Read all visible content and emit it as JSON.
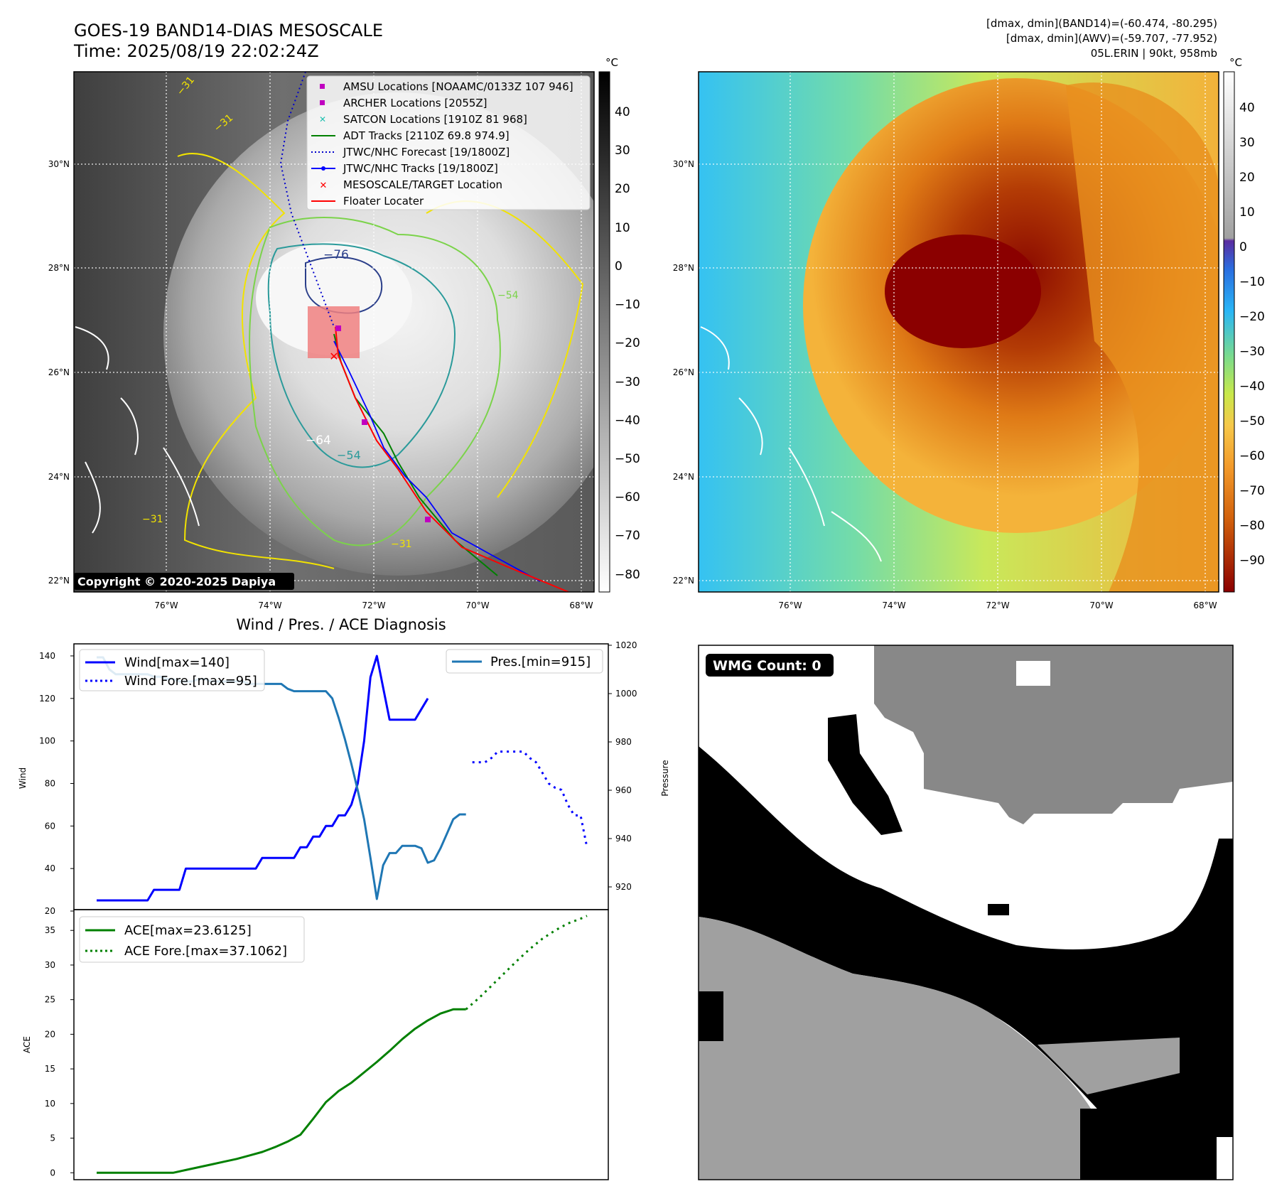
{
  "header": {
    "title_line1": "GOES-19 BAND14-DIAS MESOSCALE",
    "title_line2": "Time: 2025/08/19 22:02:24Z",
    "stats_line1": "[dmax, dmin](BAND14)=(-60.474, -80.295)",
    "stats_line2": "[dmax, dmin](AWV)=(-59.707, -77.952)",
    "stats_line3": "05L.ERIN | 90kt, 958mb"
  },
  "copyright": "Copyright © 2020-2025 Dapiya",
  "map_left": {
    "lat_ticks": [
      "30°N",
      "28°N",
      "26°N",
      "24°N",
      "22°N"
    ],
    "lon_ticks": [
      "76°W",
      "74°W",
      "72°W",
      "70°W",
      "68°W"
    ],
    "colorbar_unit": "°C",
    "colorbar_ticks": [
      "40",
      "30",
      "20",
      "10",
      "0",
      "−10",
      "−20",
      "−30",
      "−40",
      "−50",
      "−60",
      "−70",
      "−80"
    ],
    "contour_labels": [
      "−31",
      "−31",
      "−76",
      "−54",
      "−64",
      "−54",
      "−31",
      "−31"
    ],
    "legend": [
      {
        "label": "AMSU Locations [NOAAMC/0133Z 107 946]",
        "marker": "square",
        "color": "#c000c0"
      },
      {
        "label": "ARCHER Locations [2055Z]",
        "marker": "square",
        "color": "#c000c0"
      },
      {
        "label": "SATCON Locations [1910Z 81 968]",
        "marker": "x",
        "color": "#20c0b0"
      },
      {
        "label": "ADT Tracks [2110Z 69.8 974.9]",
        "marker": "line",
        "color": "#008000"
      },
      {
        "label": "JTWC/NHC Forecast [19/1800Z]",
        "marker": "dotted",
        "color": "#0000cc"
      },
      {
        "label": "JTWC/NHC Tracks [19/1800Z]",
        "marker": "line-dot",
        "color": "#0000ff"
      },
      {
        "label": "MESOSCALE/TARGET Location",
        "marker": "x",
        "color": "#ff0000"
      },
      {
        "label": "Floater Locater",
        "marker": "line",
        "color": "#ff0000"
      }
    ]
  },
  "map_right": {
    "lat_ticks": [
      "30°N",
      "28°N",
      "26°N",
      "24°N",
      "22°N"
    ],
    "lon_ticks": [
      "76°W",
      "74°W",
      "72°W",
      "70°W",
      "68°W"
    ],
    "colorbar_unit": "°C",
    "colorbar_ticks": [
      "40",
      "30",
      "20",
      "10",
      "0",
      "−10",
      "−20",
      "−30",
      "−40",
      "−50",
      "−60",
      "−70",
      "−80",
      "−90"
    ]
  },
  "wmg": {
    "label": "WMG Count: 0"
  },
  "diagnosis_title": "Wind / Pres. / ACE Diagnosis",
  "chart_data": [
    {
      "type": "line",
      "title": "Wind / Pres. / ACE Diagnosis",
      "ylabel": "Wind",
      "y2label": "Pressure",
      "ylim": [
        20,
        145
      ],
      "y2lim": [
        910,
        1020
      ],
      "yticks": [
        20,
        40,
        60,
        80,
        100,
        120,
        140
      ],
      "y2ticks": [
        920,
        940,
        960,
        980,
        1000,
        1020
      ],
      "x": [
        0,
        1,
        2,
        3,
        4,
        5,
        6,
        7,
        8,
        9,
        10,
        11,
        12,
        13,
        14,
        15,
        16,
        17,
        18,
        19,
        20,
        21,
        22,
        23,
        24,
        25,
        26,
        27,
        28,
        29,
        30,
        31,
        32,
        33,
        34,
        35,
        36,
        37,
        38,
        39,
        40,
        41,
        42,
        43,
        44,
        45,
        46,
        47,
        48,
        49,
        50,
        51,
        52,
        53,
        54,
        55,
        56,
        57,
        58,
        59,
        60,
        61,
        62,
        63,
        64,
        65,
        66,
        67,
        68,
        69,
        70,
        71,
        72,
        73,
        74,
        75,
        76,
        77
      ],
      "series": [
        {
          "name": "Wind[max=140]",
          "axis": "left",
          "style": "solid",
          "color": "#0000ff",
          "width": 3,
          "x": [
            0,
            1,
            2,
            3,
            4,
            5,
            6,
            7,
            8,
            9,
            10,
            11,
            12,
            13,
            14,
            15,
            16,
            17,
            18,
            19,
            20,
            21,
            22,
            23,
            24,
            25,
            26,
            27,
            28,
            29,
            30,
            31,
            32,
            33,
            34,
            35,
            36,
            37,
            38,
            39,
            40,
            41,
            42,
            43,
            44,
            45,
            46,
            47,
            48,
            49,
            50,
            51,
            52
          ],
          "values": [
            25,
            25,
            25,
            25,
            25,
            25,
            25,
            25,
            25,
            30,
            30,
            30,
            30,
            30,
            40,
            40,
            40,
            40,
            40,
            40,
            40,
            40,
            40,
            40,
            40,
            40,
            45,
            45,
            45,
            45,
            45,
            45,
            50,
            50,
            55,
            55,
            60,
            60,
            65,
            65,
            70,
            80,
            100,
            130,
            140,
            125,
            110,
            110,
            110,
            110,
            110,
            115,
            120
          ]
        },
        {
          "name": "Wind Fore.[max=95]",
          "axis": "left",
          "style": "dotted",
          "color": "#0000ff",
          "width": 3,
          "x": [
            59,
            60,
            61,
            62,
            63,
            64,
            65,
            66,
            67,
            68,
            69,
            70,
            71,
            72,
            73,
            74,
            75,
            76,
            77
          ],
          "values": [
            90,
            90,
            90,
            92,
            95,
            95,
            95,
            95,
            95,
            92,
            90,
            85,
            80,
            78,
            77,
            70,
            65,
            65,
            50
          ]
        },
        {
          "name": "Pres.[min=915]",
          "axis": "right",
          "style": "solid",
          "color": "#1f77b4",
          "width": 3,
          "x": [
            0,
            1,
            2,
            3,
            4,
            5,
            6,
            7,
            8,
            9,
            10,
            11,
            12,
            13,
            14,
            15,
            16,
            17,
            18,
            19,
            20,
            21,
            22,
            23,
            24,
            25,
            26,
            27,
            28,
            29,
            30,
            31,
            32,
            33,
            34,
            35,
            36,
            37,
            38,
            39,
            40,
            41,
            42,
            43,
            44,
            45,
            46,
            47,
            48,
            49,
            50,
            51,
            52,
            53,
            54,
            55,
            56,
            57,
            58
          ],
          "values": [
            1015,
            1015,
            1010,
            1008,
            1008,
            1008,
            1008,
            1008,
            1008,
            1007,
            1007,
            1006,
            1006,
            1005,
            1005,
            1005,
            1006,
            1006,
            1005,
            1005,
            1005,
            1005,
            1005,
            1005,
            1004,
            1004,
            1004,
            1004,
            1004,
            1004,
            1002,
            1001,
            1001,
            1001,
            1001,
            1001,
            1001,
            998,
            990,
            981,
            971,
            960,
            948,
            932,
            915,
            929,
            934,
            934,
            937,
            937,
            937,
            936,
            930,
            931,
            936,
            942,
            948,
            950,
            950
          ]
        },
        {
          "name": "ACE[max=23.6125]",
          "axis": "ace",
          "style": "solid",
          "color": "#008000",
          "width": 3,
          "x": [
            0,
            4,
            8,
            12,
            14,
            16,
            18,
            20,
            22,
            24,
            26,
            28,
            30,
            32,
            34,
            36,
            37,
            38,
            40,
            42,
            44,
            46,
            48,
            50,
            52,
            54,
            56,
            58
          ],
          "values": [
            0,
            0,
            0,
            0,
            0.4,
            0.8,
            1.2,
            1.6,
            2.0,
            2.5,
            3.0,
            3.7,
            4.5,
            5.5,
            7.8,
            10.2,
            11.0,
            11.8,
            13.0,
            14.5,
            16.0,
            17.6,
            19.3,
            20.8,
            22.0,
            23.0,
            23.6,
            23.6
          ]
        },
        {
          "name": "ACE Fore.[max=37.1062]",
          "axis": "ace",
          "style": "dotted",
          "color": "#008000",
          "width": 3,
          "x": [
            58,
            60,
            62,
            64,
            66,
            68,
            70,
            72,
            74,
            76,
            77
          ],
          "values": [
            23.6,
            25.2,
            27.0,
            28.8,
            30.6,
            32.3,
            33.8,
            35.0,
            36.0,
            36.7,
            37.1
          ]
        }
      ],
      "ace_ylabel": "ACE",
      "ace_ylim": [
        -1,
        38
      ],
      "ace_yticks": [
        0,
        5,
        10,
        15,
        20,
        25,
        30,
        35
      ]
    }
  ]
}
